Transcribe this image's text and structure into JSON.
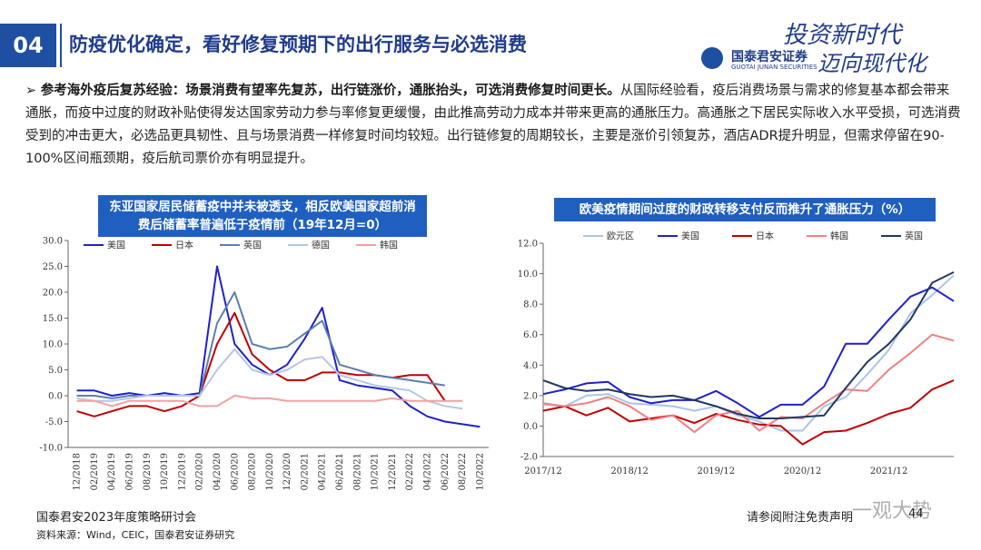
{
  "header": {
    "number": "04",
    "title": "防疫优化确定，看好修复预期下的出行服务与必选消费",
    "logo_cn": "国泰君安证券",
    "logo_en": "GUOTAI JUNAN SECURITIES",
    "slogan_1": "投资新时代",
    "slogan_2": "迈向现代化"
  },
  "summary": {
    "lead": "参考海外疫后复苏经验：场景消费有望率先复苏，出行链涨价，通胀抬头，可选消费修复时间更长。",
    "text": "从国际经验看，疫后消费场景与需求的修复基本都会带来通胀，而疫中过度的财政补贴使得发达国家劳动力参与率修复更缓慢，由此推高劳动力成本并带来更高的通胀压力。高通胀之下居民实际收入水平受损，可选消费受到的冲击更大，必选品更具韧性、且与场景消费一样修复时间均较短。出行链修复的周期较长，主要是涨价引领复苏，酒店ADR提升明显，但需求停留在90-100%区间瓶颈期，疫后航司票价亦有明显提升。"
  },
  "chart_data": [
    {
      "type": "line",
      "title": "东亚国家居民储蓄疫中并未被透支，相反欧美国家超前消费后储蓄率普遍低于疫情前（19年12月=0）",
      "categories": [
        "12/2018",
        "02/2019",
        "04/2019",
        "06/2019",
        "08/2019",
        "10/2019",
        "12/2019",
        "02/2020",
        "04/2020",
        "06/2020",
        "08/2020",
        "10/2020",
        "12/2020",
        "02/2021",
        "04/2021",
        "06/2021",
        "08/2021",
        "10/2021",
        "12/2021",
        "02/2022",
        "04/2022",
        "06/2022",
        "08/2022",
        "10/2022"
      ],
      "ylim": [
        -10,
        30
      ],
      "yticks": [
        {
          "value": -10,
          "label": "-10.0"
        },
        {
          "value": -5,
          "label": "-5.0"
        },
        {
          "value": 0,
          "label": "0.0"
        },
        {
          "value": 5,
          "label": "5.0"
        },
        {
          "value": 10,
          "label": "10.0"
        },
        {
          "value": 15,
          "label": "15.0"
        },
        {
          "value": 20,
          "label": "20.0"
        },
        {
          "value": 25,
          "label": "25.0"
        },
        {
          "value": 30,
          "label": "30.0"
        }
      ],
      "series": [
        {
          "name": "美国",
          "color": "#2020cc",
          "values": [
            1,
            1,
            0,
            0.5,
            0,
            0.5,
            0,
            0.5,
            25,
            10,
            6,
            4,
            6,
            11,
            17,
            3,
            2,
            1.5,
            1,
            -2,
            -4,
            -5,
            -5.5,
            -6
          ]
        },
        {
          "name": "日本",
          "color": "#c00000",
          "values": [
            -3,
            -4,
            -3,
            -2,
            -2,
            -3,
            -2,
            0,
            10,
            16,
            8,
            5,
            3,
            3,
            4.5,
            4.5,
            4,
            4,
            3.5,
            4,
            4,
            -1,
            null,
            null
          ]
        },
        {
          "name": "英国",
          "color": "#5b7fb0",
          "values": [
            0,
            0,
            -0.5,
            0,
            0,
            0,
            0,
            0,
            14,
            20,
            10,
            9,
            9.5,
            12,
            14.5,
            6,
            5,
            4,
            3.5,
            3,
            2.5,
            2,
            null,
            null
          ]
        },
        {
          "name": "德国",
          "color": "#b4c7e7",
          "values": [
            -0.5,
            -1,
            -1,
            -0.5,
            0,
            0,
            0,
            0,
            5,
            9,
            5,
            4,
            5,
            7,
            7.5,
            4,
            3,
            2,
            1.5,
            1,
            -1,
            -2,
            -2.5,
            null
          ]
        },
        {
          "name": "韩国",
          "color": "#f4a0a0",
          "values": [
            -1,
            -1,
            -2,
            -1,
            -1,
            -1,
            -1,
            -2,
            -2,
            0,
            -0.5,
            -0.5,
            -1,
            -1,
            -1,
            -1,
            -1,
            -1,
            -0.5,
            -1,
            -1,
            -1,
            -1,
            null
          ]
        }
      ]
    },
    {
      "type": "line",
      "title": "欧美疫情期间过度的财政转移支付反而推升了通胀压力（%）",
      "categories": [
        "2017/12",
        null,
        null,
        null,
        "2018/12",
        null,
        null,
        null,
        "2019/12",
        null,
        null,
        null,
        "2020/12",
        null,
        null,
        null,
        "2021/12",
        null,
        null,
        null
      ],
      "ylim": [
        -2,
        12
      ],
      "yticks": [
        {
          "value": -2,
          "label": "-2.0"
        },
        {
          "value": 0,
          "label": "0.0"
        },
        {
          "value": 2,
          "label": "2.0"
        },
        {
          "value": 4,
          "label": "4.0"
        },
        {
          "value": 6,
          "label": "6.0"
        },
        {
          "value": 8,
          "label": "8.0"
        },
        {
          "value": 10,
          "label": "10.0"
        },
        {
          "value": 12,
          "label": "12.0"
        }
      ],
      "series": [
        {
          "name": "欧元区",
          "color": "#a9c4e8",
          "values": [
            1.4,
            1.3,
            2.0,
            2.1,
            1.5,
            1.4,
            1.3,
            1.0,
            1.3,
            0.7,
            0.3,
            -0.3,
            -0.3,
            1.3,
            1.9,
            3.4,
            5.0,
            7.4,
            8.6,
            9.9
          ]
        },
        {
          "name": "美国",
          "color": "#1f1fd0",
          "values": [
            2.1,
            2.4,
            2.8,
            2.9,
            1.9,
            1.5,
            1.7,
            1.7,
            2.3,
            1.5,
            0.6,
            1.4,
            1.4,
            2.6,
            5.4,
            5.4,
            7.0,
            8.5,
            9.1,
            8.2
          ]
        },
        {
          "name": "日本",
          "color": "#c00000",
          "values": [
            1.0,
            1.3,
            0.7,
            1.2,
            0.3,
            0.5,
            0.7,
            0.2,
            0.8,
            0.4,
            0.1,
            0,
            -1.2,
            -0.4,
            -0.3,
            0.2,
            0.8,
            1.2,
            2.4,
            3.0
          ]
        },
        {
          "name": "韩国",
          "color": "#f08080",
          "values": [
            1.5,
            1.3,
            1.5,
            1.9,
            1.3,
            0.4,
            0.7,
            -0.4,
            0.7,
            1.0,
            -0.3,
            0.6,
            0.5,
            1.5,
            2.4,
            2.3,
            3.7,
            4.8,
            6.0,
            5.6
          ]
        },
        {
          "name": "英国",
          "color": "#1f3864",
          "values": [
            3.0,
            2.5,
            2.3,
            2.4,
            2.1,
            1.9,
            2.0,
            1.7,
            1.3,
            0.8,
            0.5,
            0.5,
            0.6,
            0.7,
            2.5,
            4.2,
            5.4,
            7.0,
            9.4,
            10.1
          ]
        }
      ]
    }
  ],
  "footer": {
    "event": "国泰君安2023年度策略研讨会",
    "source": "资料来源：Wind，CEIC，国泰君安证券研究",
    "disclaimer": "请参阅附注免责声明",
    "page": "44",
    "watermark": "一观大势"
  }
}
